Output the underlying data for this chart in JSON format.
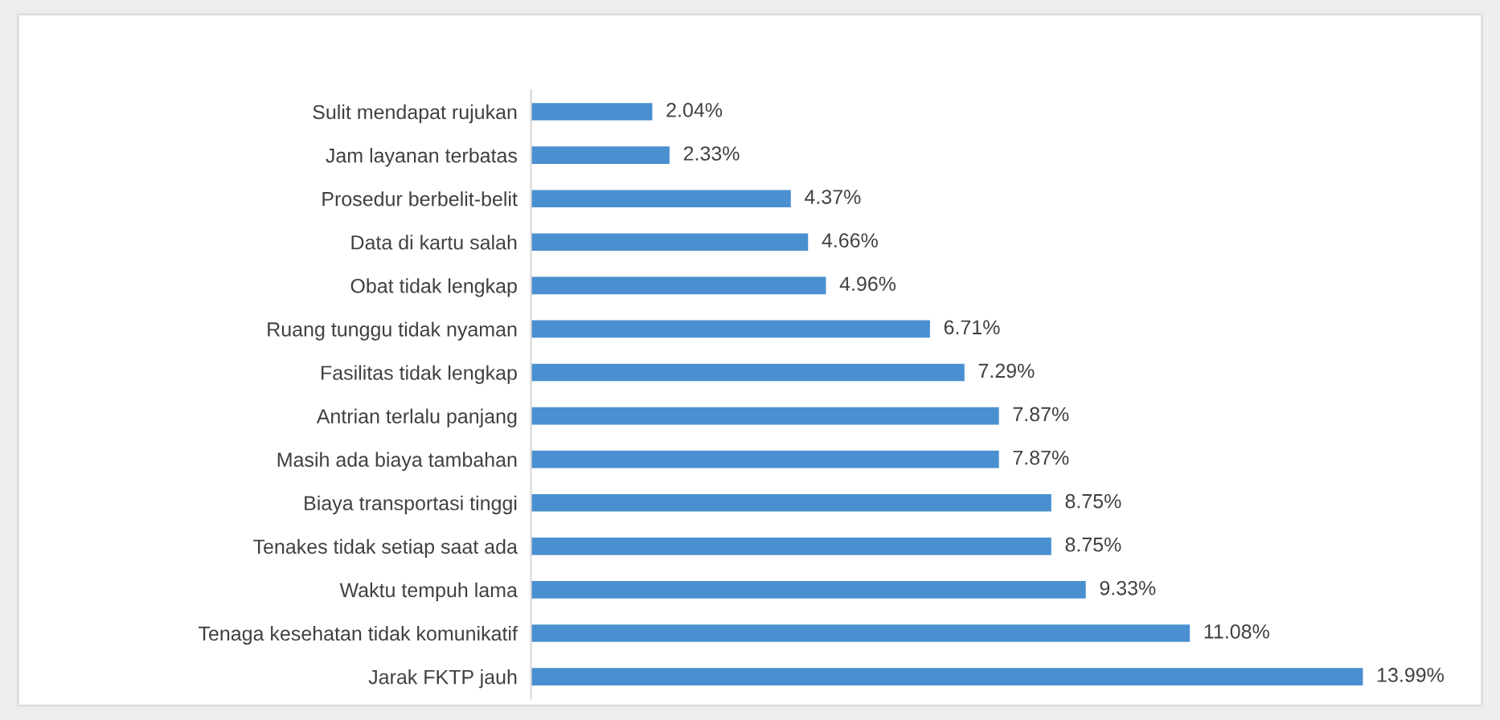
{
  "chart_data": {
    "type": "bar",
    "orientation": "horizontal",
    "categories": [
      "Sulit mendapat rujukan",
      "Jam layanan terbatas",
      "Prosedur berbelit-belit",
      "Data di kartu salah",
      "Obat tidak lengkap",
      "Ruang tunggu tidak nyaman",
      "Fasilitas tidak lengkap",
      "Antrian terlalu panjang",
      "Masih ada biaya tambahan",
      "Biaya transportasi tinggi",
      "Tenakes tidak setiap saat ada",
      "Waktu tempuh lama",
      "Tenaga kesehatan tidak komunikatif",
      "Jarak FKTP jauh"
    ],
    "values": [
      2.04,
      2.33,
      4.37,
      4.66,
      4.96,
      6.71,
      7.29,
      7.87,
      7.87,
      8.75,
      8.75,
      9.33,
      11.08,
      13.99
    ],
    "value_labels": [
      "2.04%",
      "2.33%",
      "4.37%",
      "4.66%",
      "4.96%",
      "6.71%",
      "7.29%",
      "7.87%",
      "7.87%",
      "8.75%",
      "8.75%",
      "9.33%",
      "11.08%",
      "13.99%"
    ],
    "color": "#4a8fd0"
  }
}
